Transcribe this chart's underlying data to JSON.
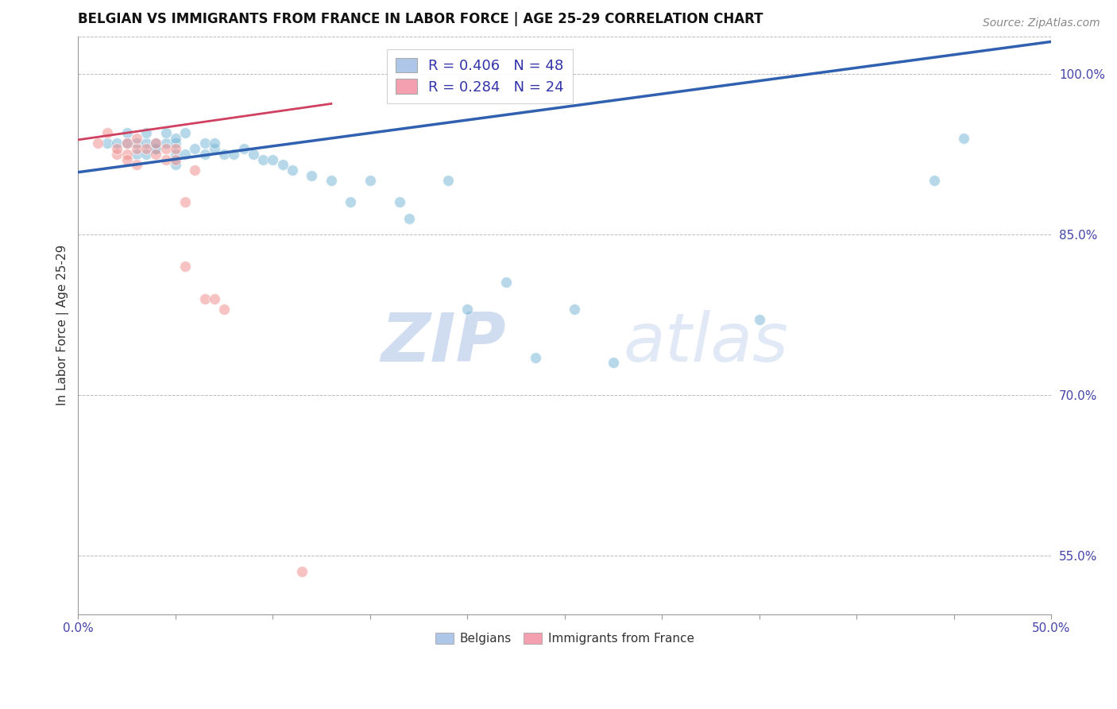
{
  "title": "BELGIAN VS IMMIGRANTS FROM FRANCE IN LABOR FORCE | AGE 25-29 CORRELATION CHART",
  "source": "Source: ZipAtlas.com",
  "ylabel": "In Labor Force | Age 25-29",
  "xlim": [
    0.0,
    0.5
  ],
  "ylim": [
    0.495,
    1.035
  ],
  "xticks": [
    0.0,
    0.05,
    0.1,
    0.15,
    0.2,
    0.25,
    0.3,
    0.35,
    0.4,
    0.45,
    0.5
  ],
  "xticklabels_show": {
    "0.0": "0.0%",
    "0.5": "50.0%"
  },
  "yticks": [
    0.55,
    0.7,
    0.85,
    1.0
  ],
  "yticklabels": [
    "55.0%",
    "70.0%",
    "85.0%",
    "100.0%"
  ],
  "legend_blue_label": "R = 0.406   N = 48",
  "legend_pink_label": "R = 0.284   N = 24",
  "legend_blue_color": "#aec6e8",
  "legend_pink_color": "#f4a0b0",
  "blue_color": "#7ab8d8",
  "pink_color": "#f09090",
  "trend_blue": "#3060b0",
  "trend_pink": "#d04060",
  "watermark_zip": "ZIP",
  "watermark_atlas": "atlas",
  "blue_x": [
    0.015,
    0.02,
    0.025,
    0.025,
    0.03,
    0.03,
    0.035,
    0.035,
    0.035,
    0.04,
    0.04,
    0.04,
    0.045,
    0.045,
    0.05,
    0.05,
    0.05,
    0.05,
    0.055,
    0.055,
    0.06,
    0.065,
    0.065,
    0.07,
    0.07,
    0.075,
    0.08,
    0.085,
    0.09,
    0.095,
    0.1,
    0.105,
    0.11,
    0.12,
    0.13,
    0.14,
    0.15,
    0.165,
    0.17,
    0.19,
    0.2,
    0.22,
    0.235,
    0.255,
    0.275,
    0.35,
    0.44,
    0.455
  ],
  "blue_y": [
    0.935,
    0.935,
    0.935,
    0.945,
    0.925,
    0.935,
    0.935,
    0.925,
    0.945,
    0.93,
    0.93,
    0.935,
    0.935,
    0.945,
    0.915,
    0.925,
    0.935,
    0.94,
    0.925,
    0.945,
    0.93,
    0.925,
    0.935,
    0.93,
    0.935,
    0.925,
    0.925,
    0.93,
    0.925,
    0.92,
    0.92,
    0.915,
    0.91,
    0.905,
    0.9,
    0.88,
    0.9,
    0.88,
    0.865,
    0.9,
    0.78,
    0.805,
    0.735,
    0.78,
    0.73,
    0.77,
    0.9,
    0.94
  ],
  "pink_x": [
    0.01,
    0.015,
    0.02,
    0.02,
    0.025,
    0.025,
    0.025,
    0.03,
    0.03,
    0.03,
    0.035,
    0.04,
    0.04,
    0.045,
    0.045,
    0.05,
    0.05,
    0.055,
    0.055,
    0.06,
    0.065,
    0.07,
    0.075,
    0.115
  ],
  "pink_y": [
    0.935,
    0.945,
    0.925,
    0.93,
    0.925,
    0.92,
    0.935,
    0.915,
    0.93,
    0.94,
    0.93,
    0.925,
    0.935,
    0.92,
    0.93,
    0.92,
    0.93,
    0.88,
    0.82,
    0.91,
    0.79,
    0.79,
    0.78,
    0.535
  ],
  "blue_trendline_x": [
    0.0,
    0.5
  ],
  "blue_trendline_y": [
    0.908,
    1.03
  ],
  "pink_trendline_x": [
    -0.005,
    0.13
  ],
  "pink_trendline_y": [
    0.937,
    0.972
  ],
  "bottom_labels": [
    "Belgians",
    "Immigrants from France"
  ],
  "grid_color": "#bbbbbb",
  "background_color": "#ffffff",
  "title_fontsize": 12,
  "source_fontsize": 10,
  "axis_label_fontsize": 11,
  "tick_fontsize": 11,
  "legend_fontsize": 13
}
